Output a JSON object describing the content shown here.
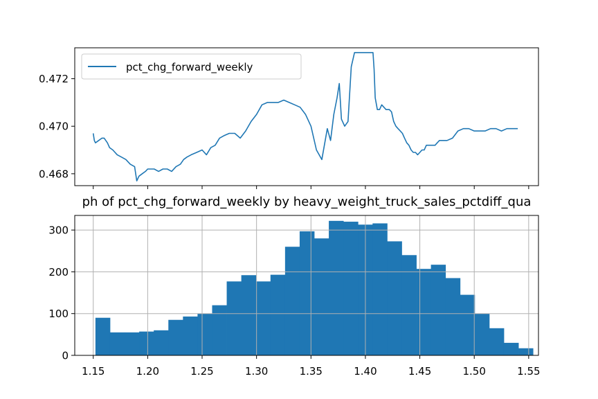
{
  "chart_data": [
    {
      "type": "line",
      "ylim": [
        0.4675,
        0.4733
      ],
      "yticks": [
        0.468,
        0.47,
        0.472
      ],
      "ytick_labels": [
        "0.468",
        "0.470",
        "0.472"
      ],
      "xlim": [
        1.133,
        1.559
      ],
      "xticks": [
        1.15,
        1.2,
        1.25,
        1.3,
        1.35,
        1.4,
        1.45,
        1.5,
        1.55
      ],
      "xtick_labels": [
        "",
        "",
        "",
        "",
        "",
        "",
        "",
        "",
        ""
      ],
      "grid": false,
      "legend": {
        "placement": "upper-left",
        "entries": [
          "pct_chg_forward_weekly"
        ]
      },
      "series": [
        {
          "name": "pct_chg_forward_weekly",
          "color": "#1f77b4",
          "x": [
            1.15,
            1.151,
            1.152,
            1.155,
            1.158,
            1.16,
            1.163,
            1.165,
            1.168,
            1.172,
            1.176,
            1.18,
            1.184,
            1.188,
            1.19,
            1.192,
            1.195,
            1.198,
            1.2,
            1.203,
            1.206,
            1.21,
            1.214,
            1.218,
            1.222,
            1.226,
            1.23,
            1.233,
            1.236,
            1.24,
            1.245,
            1.25,
            1.254,
            1.258,
            1.262,
            1.266,
            1.27,
            1.275,
            1.28,
            1.285,
            1.29,
            1.295,
            1.3,
            1.305,
            1.31,
            1.315,
            1.32,
            1.325,
            1.33,
            1.335,
            1.34,
            1.345,
            1.35,
            1.355,
            1.36,
            1.365,
            1.368,
            1.371,
            1.374,
            1.376,
            1.378,
            1.381,
            1.384,
            1.387,
            1.39,
            1.393,
            1.395,
            1.397,
            1.4,
            1.403,
            1.405,
            1.407,
            1.408,
            1.409,
            1.411,
            1.413,
            1.415,
            1.417,
            1.419,
            1.42,
            1.422,
            1.424,
            1.426,
            1.428,
            1.43,
            1.432,
            1.434,
            1.436,
            1.438,
            1.44,
            1.442,
            1.444,
            1.446,
            1.448,
            1.45,
            1.452,
            1.454,
            1.456,
            1.458,
            1.46,
            1.462,
            1.464,
            1.466,
            1.468,
            1.47,
            1.475,
            1.48,
            1.485,
            1.49,
            1.495,
            1.5,
            1.505,
            1.51,
            1.515,
            1.52,
            1.525,
            1.53,
            1.535,
            1.54
          ],
          "values": [
            0.4697,
            0.4694,
            0.4693,
            0.4694,
            0.4695,
            0.4695,
            0.4693,
            0.4691,
            0.469,
            0.4688,
            0.4687,
            0.4686,
            0.4684,
            0.4683,
            0.4677,
            0.4679,
            0.468,
            0.4681,
            0.4682,
            0.4682,
            0.4682,
            0.4681,
            0.4682,
            0.4682,
            0.4681,
            0.4683,
            0.4684,
            0.4686,
            0.4687,
            0.4688,
            0.4689,
            0.469,
            0.4688,
            0.4691,
            0.4692,
            0.4695,
            0.4696,
            0.4697,
            0.4697,
            0.4695,
            0.4698,
            0.4702,
            0.4705,
            0.4709,
            0.471,
            0.471,
            0.471,
            0.4711,
            0.471,
            0.4709,
            0.4708,
            0.4705,
            0.47,
            0.469,
            0.4686,
            0.4699,
            0.4694,
            0.4705,
            0.4712,
            0.4718,
            0.4703,
            0.47,
            0.4702,
            0.4725,
            0.4731,
            0.4731,
            0.4731,
            0.4731,
            0.4731,
            0.4731,
            0.4731,
            0.4731,
            0.4724,
            0.4712,
            0.4707,
            0.4707,
            0.4709,
            0.4708,
            0.4707,
            0.4707,
            0.4707,
            0.4706,
            0.4702,
            0.47,
            0.4699,
            0.4698,
            0.4697,
            0.4695,
            0.4693,
            0.4692,
            0.469,
            0.4689,
            0.4689,
            0.4688,
            0.4689,
            0.469,
            0.469,
            0.4692,
            0.4692,
            0.4692,
            0.4692,
            0.4692,
            0.4693,
            0.4694,
            0.4694,
            0.4694,
            0.4695,
            0.4698,
            0.4699,
            0.4699,
            0.4698,
            0.4698,
            0.4698,
            0.4699,
            0.4699,
            0.4698,
            0.4699,
            0.4699,
            0.4699
          ]
        }
      ]
    },
    {
      "type": "bar",
      "title": "ph of pct_chg_forward_weekly by heavy_weight_truck_sales_pctdiff_qua",
      "ylim": [
        0,
        335
      ],
      "yticks": [
        0,
        100,
        200,
        300
      ],
      "ytick_labels": [
        "0",
        "100",
        "200",
        "300"
      ],
      "xlim": [
        1.133,
        1.559
      ],
      "xticks": [
        1.15,
        1.2,
        1.25,
        1.3,
        1.35,
        1.4,
        1.45,
        1.5,
        1.55
      ],
      "xtick_labels": [
        "1.15",
        "1.20",
        "1.25",
        "1.30",
        "1.35",
        "1.40",
        "1.45",
        "1.50",
        "1.55"
      ],
      "grid": true,
      "color": "#1f77b4",
      "bin_edges": [
        1.152,
        1.1654,
        1.1788,
        1.1922,
        1.2056,
        1.219,
        1.2324,
        1.2458,
        1.2592,
        1.2726,
        1.286,
        1.2994,
        1.3128,
        1.3262,
        1.3396,
        1.353,
        1.3664,
        1.3798,
        1.3932,
        1.4066,
        1.42,
        1.4334,
        1.4468,
        1.4602,
        1.4736,
        1.487,
        1.5004,
        1.5138,
        1.5272,
        1.5406,
        1.554
      ],
      "values": [
        90,
        55,
        55,
        57,
        60,
        85,
        93,
        100,
        120,
        177,
        192,
        177,
        193,
        260,
        297,
        280,
        322,
        320,
        313,
        316,
        273,
        240,
        207,
        217,
        185,
        145,
        100,
        65,
        30,
        17
      ]
    }
  ]
}
